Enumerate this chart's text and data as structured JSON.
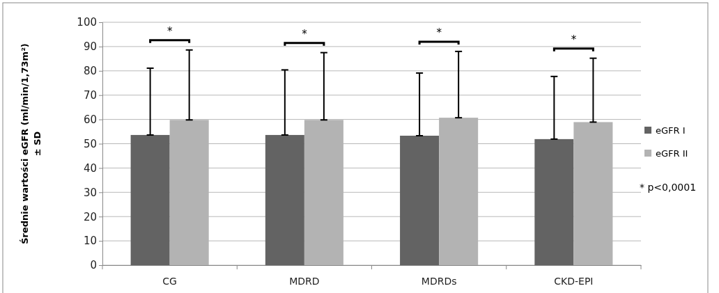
{
  "chart_data": {
    "type": "bar",
    "ylabel": "Średnie wartości eGFR (ml/min/1,73m²) ± SD",
    "categories": [
      "CG",
      "MDRD",
      "MDRDs",
      "CKD-EPI"
    ],
    "series": [
      {
        "name": "eGFR I",
        "color": "#636363",
        "values": [
          53.6,
          53.6,
          53.3,
          51.9
        ],
        "errors": [
          [
            53.6,
            81.1
          ],
          [
            53.6,
            80.4
          ],
          [
            53.3,
            79.1
          ],
          [
            51.9,
            77.7
          ]
        ]
      },
      {
        "name": "eGFR II",
        "color": "#b3b3b3",
        "values": [
          59.8,
          59.8,
          60.7,
          58.9
        ],
        "errors": [
          [
            59.8,
            88.6
          ],
          [
            59.8,
            87.5
          ],
          [
            60.7,
            88.0
          ],
          [
            58.9,
            85.2
          ]
        ]
      }
    ],
    "ylim": [
      0,
      100
    ],
    "yticks": [
      0,
      10,
      20,
      30,
      40,
      50,
      60,
      70,
      80,
      90,
      100
    ],
    "grid": "y",
    "legend": "right",
    "annotations": [
      "*",
      "*",
      "*",
      "*",
      "* p<0,0001"
    ]
  }
}
